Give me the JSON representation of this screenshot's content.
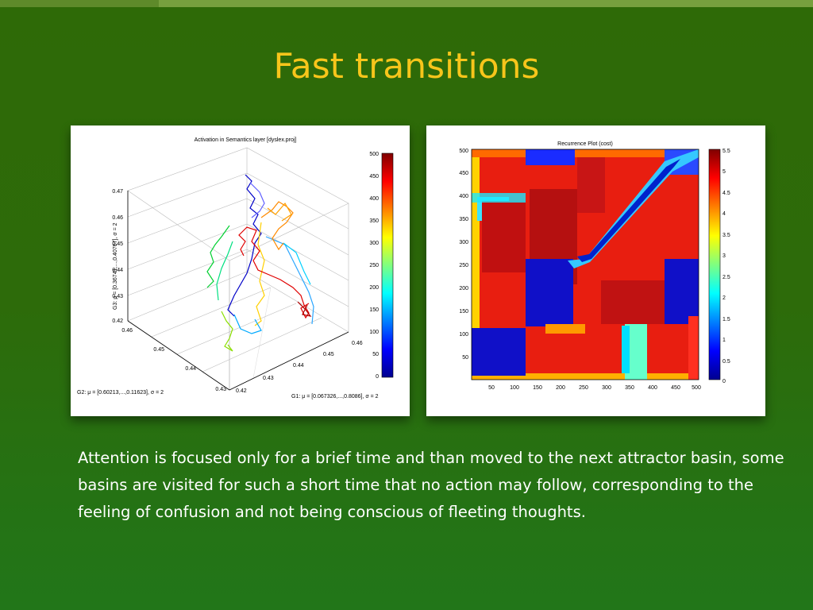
{
  "slide": {
    "title": "Fast transitions",
    "body": "Attention is focused only for a brief time and than moved to the next attractor basin, some basins are visited for such a short time that no action may follow, corresponding to the feeling of confusion and not being conscious of fleeting thoughts."
  },
  "figure_left": {
    "title": "Activation in Semantics layer [dyslex.proj]",
    "z_axis_label": "G3: μ = [0.36741,...,0.40767], σ = 2",
    "g2_axis_label": "G2: μ = [0.60213,...,0.11623], σ = 2",
    "g1_axis_label": "G1: μ = [0.067326,...,0.8086], σ = 2",
    "z_ticks": [
      "0.47",
      "0.46",
      "0.45",
      "0.44",
      "0.43",
      "0.42"
    ],
    "g2_ticks": [
      "0.46",
      "0.45",
      "0.44",
      "0.43"
    ],
    "g1_ticks": [
      "0.42",
      "0.43",
      "0.44",
      "0.45",
      "0.46"
    ],
    "colorbar_ticks": [
      "500",
      "450",
      "400",
      "350",
      "300",
      "250",
      "200",
      "150",
      "100",
      "50",
      "0"
    ]
  },
  "figure_right": {
    "title": "Recurrence Plot (cost)",
    "y_ticks": [
      "500",
      "450",
      "400",
      "350",
      "300",
      "250",
      "200",
      "150",
      "100",
      "50"
    ],
    "x_ticks": [
      "50",
      "100",
      "150",
      "200",
      "250",
      "300",
      "350",
      "400",
      "450",
      "500"
    ],
    "colorbar_ticks": [
      "5.5",
      "5",
      "4.5",
      "4",
      "3.5",
      "3",
      "2.5",
      "2",
      "1.5",
      "1",
      "0.5",
      "0"
    ]
  }
}
